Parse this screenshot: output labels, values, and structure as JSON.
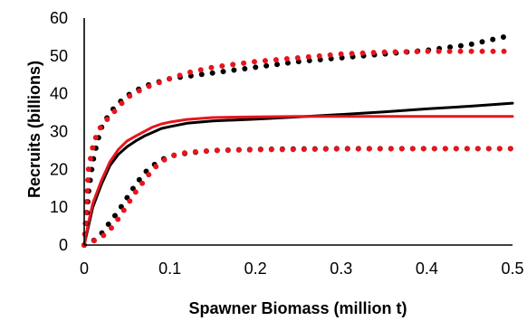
{
  "chart_data": {
    "type": "line",
    "title": "",
    "xlabel": "Spawner Biomass (million t)",
    "ylabel": "Recruits (billions)",
    "xlim": [
      0,
      0.5
    ],
    "ylim": [
      0,
      60
    ],
    "x_ticks": [
      "0",
      "0.1",
      "0.2",
      "0.3",
      "0.4",
      "0.5"
    ],
    "y_ticks": [
      "0",
      "10",
      "20",
      "30",
      "40",
      "50",
      "60"
    ],
    "grid": false,
    "legend": "none",
    "series": [
      {
        "color": "#000000",
        "style": "solid",
        "points": [
          [
            0,
            0
          ],
          [
            0.005,
            5
          ],
          [
            0.01,
            10
          ],
          [
            0.02,
            16
          ],
          [
            0.03,
            21
          ],
          [
            0.04,
            24
          ],
          [
            0.05,
            26
          ],
          [
            0.06,
            27.5
          ],
          [
            0.07,
            28.8
          ],
          [
            0.08,
            29.8
          ],
          [
            0.09,
            30.8
          ],
          [
            0.1,
            31.3
          ],
          [
            0.12,
            32.2
          ],
          [
            0.15,
            32.8
          ],
          [
            0.2,
            33.3
          ],
          [
            0.25,
            33.9
          ],
          [
            0.3,
            34.5
          ],
          [
            0.35,
            35.2
          ],
          [
            0.4,
            36
          ],
          [
            0.45,
            36.7
          ],
          [
            0.5,
            37.5
          ]
        ]
      },
      {
        "color": "#e8141d",
        "style": "solid",
        "points": [
          [
            0,
            0
          ],
          [
            0.005,
            6
          ],
          [
            0.01,
            11
          ],
          [
            0.02,
            17
          ],
          [
            0.03,
            22
          ],
          [
            0.04,
            25.3
          ],
          [
            0.05,
            27.5
          ],
          [
            0.06,
            28.8
          ],
          [
            0.07,
            30
          ],
          [
            0.08,
            31.2
          ],
          [
            0.09,
            32
          ],
          [
            0.1,
            32.5
          ],
          [
            0.12,
            33.2
          ],
          [
            0.15,
            33.7
          ],
          [
            0.2,
            33.9
          ],
          [
            0.25,
            34
          ],
          [
            0.3,
            34
          ],
          [
            0.4,
            34
          ],
          [
            0.5,
            34
          ]
        ]
      },
      {
        "color": "#000000",
        "style": "dotted",
        "points": [
          [
            0,
            0
          ],
          [
            0.003,
            8
          ],
          [
            0.005,
            14
          ],
          [
            0.01,
            22
          ],
          [
            0.015,
            27
          ],
          [
            0.02,
            31
          ],
          [
            0.03,
            35
          ],
          [
            0.04,
            37.5
          ],
          [
            0.05,
            39.5
          ],
          [
            0.07,
            42
          ],
          [
            0.1,
            44
          ],
          [
            0.15,
            45.5
          ],
          [
            0.2,
            47
          ],
          [
            0.25,
            48.5
          ],
          [
            0.3,
            49.5
          ],
          [
            0.35,
            50.5
          ],
          [
            0.4,
            51.5
          ],
          [
            0.45,
            53
          ],
          [
            0.5,
            55.5
          ]
        ]
      },
      {
        "color": "#e8141d",
        "style": "dotted",
        "points": [
          [
            0,
            0
          ],
          [
            0.003,
            12
          ],
          [
            0.005,
            20
          ],
          [
            0.01,
            26
          ],
          [
            0.015,
            29.5
          ],
          [
            0.02,
            31.5
          ],
          [
            0.03,
            34
          ],
          [
            0.04,
            36.5
          ],
          [
            0.05,
            39
          ],
          [
            0.07,
            41.5
          ],
          [
            0.1,
            44
          ],
          [
            0.12,
            45.5
          ],
          [
            0.15,
            47
          ],
          [
            0.2,
            48.5
          ],
          [
            0.25,
            49.5
          ],
          [
            0.3,
            50.5
          ],
          [
            0.35,
            51
          ],
          [
            0.4,
            51.2
          ],
          [
            0.45,
            51.2
          ],
          [
            0.5,
            51.2
          ]
        ]
      },
      {
        "color": "#000000",
        "style": "dotted",
        "points": [
          [
            0,
            0
          ],
          [
            0.01,
            1
          ],
          [
            0.02,
            3
          ],
          [
            0.03,
            6
          ],
          [
            0.04,
            9
          ],
          [
            0.05,
            12.5
          ],
          [
            0.06,
            16
          ],
          [
            0.07,
            19
          ],
          [
            0.08,
            21
          ],
          [
            0.09,
            22.5
          ],
          [
            0.1,
            23.5
          ],
          [
            0.12,
            24.3
          ],
          [
            0.15,
            25
          ],
          [
            0.2,
            25.3
          ],
          [
            0.3,
            25.5
          ],
          [
            0.4,
            25.5
          ],
          [
            0.5,
            25.5
          ]
        ]
      },
      {
        "color": "#e8141d",
        "style": "dotted",
        "points": [
          [
            0,
            0
          ],
          [
            0.01,
            1
          ],
          [
            0.02,
            2
          ],
          [
            0.03,
            4
          ],
          [
            0.04,
            7
          ],
          [
            0.05,
            10.5
          ],
          [
            0.06,
            14
          ],
          [
            0.07,
            17
          ],
          [
            0.08,
            20
          ],
          [
            0.09,
            22
          ],
          [
            0.1,
            23.5
          ],
          [
            0.12,
            24.5
          ],
          [
            0.15,
            25
          ],
          [
            0.2,
            25.2
          ],
          [
            0.3,
            25.4
          ],
          [
            0.4,
            25.5
          ],
          [
            0.5,
            25.5
          ]
        ]
      }
    ]
  }
}
